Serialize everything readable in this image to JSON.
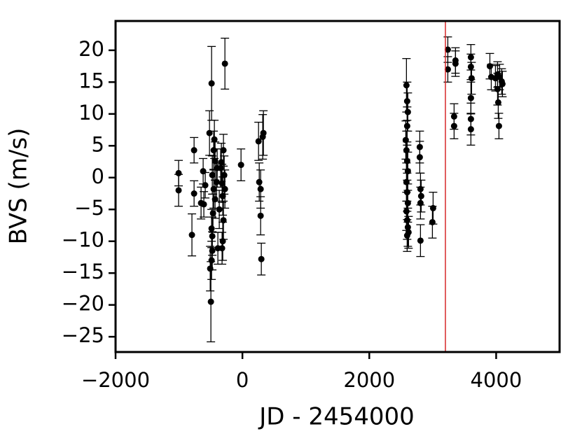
{
  "chart_data": {
    "type": "errorbar-scatter",
    "xlabel": "JD - 2454000",
    "ylabel": "BVS (m/s)",
    "xlim": [
      -2000,
      5000
    ],
    "ylim": [
      -27.4,
      24.6
    ],
    "xticks": [
      {
        "value": -2000,
        "label": "−2000"
      },
      0,
      2000,
      4000
    ],
    "yticks": [
      {
        "value": -25,
        "label": "−25"
      },
      {
        "value": -20,
        "label": "−20"
      },
      {
        "value": -15,
        "label": "−15"
      },
      {
        "value": -10,
        "label": "−10"
      },
      {
        "value": -5,
        "label": "−5"
      },
      0,
      5,
      10,
      15,
      20
    ],
    "color": "#000000",
    "vline": {
      "value": 3200,
      "color": "#d62728"
    },
    "x": [
      -1006,
      -1006,
      -762,
      -762,
      -796,
      -652,
      -619,
      -608,
      -586,
      -519,
      -486,
      -497,
      -508,
      -486,
      -475,
      -486,
      -475,
      -464,
      -453,
      -442,
      -431,
      -475,
      -453,
      -431,
      -409,
      -398,
      -387,
      -365,
      -343,
      -321,
      -310,
      -299,
      -310,
      -321,
      -287,
      -276,
      -299,
      -332,
      -276,
      -22,
      254,
      265,
      287,
      287,
      298,
      320,
      331,
      2586,
      2597,
      2608,
      2597,
      2575,
      2586,
      2597,
      2608,
      2586,
      2597,
      2608,
      2586,
      2597,
      2608,
      2597,
      2619,
      2796,
      2796,
      2807,
      2807,
      2818,
      2807,
      3006,
      2995,
      3238,
      3238,
      3359,
      3359,
      3337,
      3337,
      3602,
      3602,
      3613,
      3602,
      3602,
      3602,
      3901,
      3923,
      3989,
      4022,
      4022,
      4033,
      4044,
      4055,
      4088,
      4099
    ],
    "values": [
      0.7,
      -2,
      4.3,
      -2.5,
      -9,
      -4,
      1,
      -4.2,
      -1.2,
      7,
      14.8,
      -19.5,
      -14.3,
      -13,
      -11.5,
      -8,
      -9.2,
      -5.6,
      4.3,
      6,
      2.6,
      0.4,
      -1.8,
      -3.4,
      -0.7,
      1.5,
      -11.1,
      -5,
      1.5,
      -0.9,
      -2.9,
      4.3,
      -10,
      -11.1,
      0.4,
      -1.8,
      -6.7,
      2.4,
      17.9,
      2,
      5.7,
      -0.7,
      -1.8,
      -6,
      -12.8,
      6.4,
      7,
      14.5,
      12,
      10.3,
      8.1,
      5.9,
      4.3,
      2.6,
      1,
      -0.7,
      -2.3,
      -4,
      -5.3,
      -6.7,
      -7.8,
      -9.1,
      -8.6,
      4.8,
      3.2,
      -1.8,
      -4,
      -2.9,
      -9.9,
      -4.8,
      -7,
      20.1,
      17,
      18.4,
      17.9,
      9.6,
      8.1,
      18.9,
      17.4,
      15.6,
      12.5,
      9.2,
      7.6,
      17.5,
      15.8,
      15.6,
      16.2,
      13.9,
      11.8,
      8.1,
      15.8,
      15.1,
      14.7
    ],
    "errors": [
      2,
      2.5,
      2,
      2,
      3.3,
      2.5,
      2,
      2,
      2,
      3.5,
      5.8,
      6.3,
      3.5,
      3,
      3,
      3,
      3,
      3,
      3,
      3,
      3,
      3,
      3,
      3,
      3,
      3,
      2.5,
      3,
      3,
      3,
      3,
      2.5,
      3,
      2.5,
      3,
      3,
      3,
      3,
      4,
      2.5,
      3,
      3,
      3,
      3,
      2.5,
      3.5,
      3.5,
      4.2,
      3,
      3,
      3,
      3,
      3,
      3,
      3,
      3,
      3,
      3,
      3,
      3,
      3,
      2.5,
      2.5,
      2.5,
      2.5,
      2.5,
      2.5,
      2.5,
      2.5,
      2.5,
      2.5,
      2,
      2,
      2,
      2,
      2,
      2,
      2,
      2,
      2.5,
      2.5,
      2.5,
      2.5,
      2,
      2,
      2,
      2,
      2.5,
      2.5,
      2,
      2,
      2,
      2
    ]
  }
}
